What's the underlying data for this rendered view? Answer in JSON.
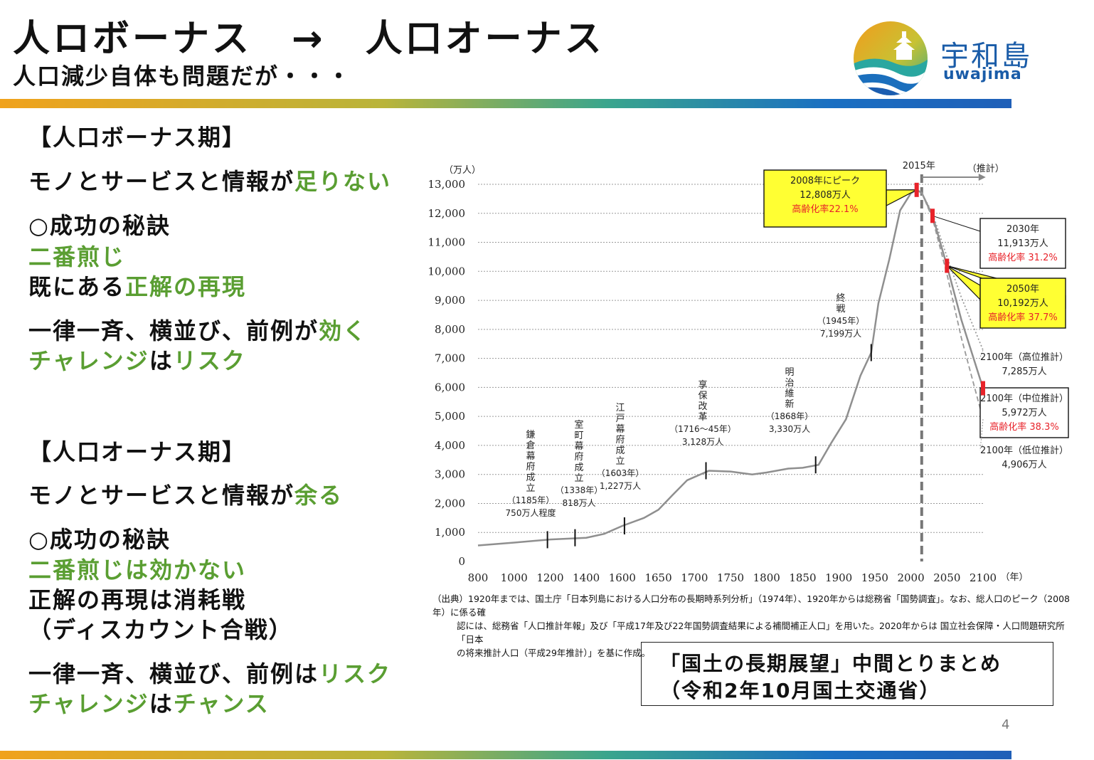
{
  "header": {
    "title": "人ロボーナス　→　人口オーナス",
    "subtitle": "人口減少自体も問題だが・・・",
    "logo_text": "宇和島",
    "logo_sub": "uwajima",
    "logo_icon": "uwajima-logo-icon"
  },
  "bonus": {
    "heading": "【人口ボーナス期】",
    "l1a": "モノとサービスと情報が",
    "l1b": "足りない",
    "l2": "○成功の秘訣",
    "l3": "二番煎じ",
    "l4a": "既にある",
    "l4b": "正解の再現",
    "l5a": "一律一斉、横並び、前例が",
    "l5b": "効く",
    "l6a": "チャレンジ",
    "l6b": "は",
    "l6c": "リスク"
  },
  "onus": {
    "heading": "【人口オーナス期】",
    "l1a": "モノとサービスと情報が",
    "l1b": "余る",
    "l2": "○成功の秘訣",
    "l3": "二番煎じは効かない",
    "l4": "正解の再現は消耗戦",
    "l5": "（ディスカウント合戦）",
    "l6a": "一律一斉、横並び、前例は",
    "l6b": "リスク",
    "l7a": "チャレンジ",
    "l7b": "は",
    "l7c": "チャンス"
  },
  "chart_data": {
    "type": "line",
    "ylabel": "（万人）",
    "xlabel": "（年）",
    "ylim": [
      0,
      13000
    ],
    "xlim": [
      800,
      2100
    ],
    "grid": true,
    "y_ticks": [
      "0",
      "1,000",
      "2,000",
      "3,000",
      "4,000",
      "5,000",
      "6,000",
      "7,000",
      "8,000",
      "9,000",
      "10,000",
      "11,000",
      "12,000",
      "13,000"
    ],
    "x_ticks": [
      "800",
      "1000",
      "1200",
      "1400",
      "1600",
      "1650",
      "1700",
      "1750",
      "1800",
      "1850",
      "1900",
      "1950",
      "2000",
      "2050",
      "2100"
    ],
    "colors": {
      "line": "#8f8f8f",
      "callout_fill": "#ffff33",
      "accent_red": "#e8232a"
    },
    "series": [
      {
        "x": [
          800,
          1000,
          1200,
          1400,
          1500,
          1600,
          1630,
          1650,
          1670,
          1690,
          1720,
          1750,
          1780,
          1800,
          1830,
          1850,
          1872,
          1890,
          1910,
          1930,
          1945,
          1955,
          1970,
          1985,
          2000,
          2008,
          2015,
          2030,
          2050,
          2070,
          2100
        ],
        "y": [
          551,
          650,
          757,
          818,
          952,
          1227,
          1500,
          1781,
          2300,
          2800,
          3128,
          3100,
          3000,
          3065,
          3200,
          3228,
          3330,
          4100,
          4900,
          6400,
          7199,
          8900,
          10400,
          12100,
          12693,
          12808,
          12709,
          11913,
          10192,
          8323,
          5972
        ]
      },
      {
        "name": "2100年（高位推計）",
        "x": [
          2015,
          2030,
          2050,
          2070,
          2100
        ],
        "y": [
          12709,
          12000,
          10500,
          9100,
          7285
        ]
      },
      {
        "name": "2100年（低位推計）",
        "x": [
          2015,
          2030,
          2050,
          2070,
          2100
        ],
        "y": [
          12709,
          11820,
          9900,
          7700,
          4906
        ]
      }
    ],
    "projection_label": "2015年",
    "projection_note": "（推計）",
    "projection_year": 2015,
    "events": [
      {
        "year": 1185,
        "value": 750,
        "lines": [
          "鎌",
          "倉",
          "幕",
          "府",
          "成",
          "立"
        ],
        "year_label": "（1185年）",
        "pop_label": "750万人程度"
      },
      {
        "year": 1338,
        "value": 818,
        "lines": [
          "室",
          "町",
          "幕",
          "府",
          "成",
          "立"
        ],
        "year_label": "（1338年）",
        "pop_label": "818万人"
      },
      {
        "year": 1603,
        "value": 1227,
        "lines": [
          "江",
          "戸",
          "幕",
          "府",
          "成",
          "立"
        ],
        "year_label": "（1603年）",
        "pop_label": "1,227万人"
      },
      {
        "year": 1716,
        "value": 3128,
        "lines": [
          "享",
          "保",
          "改",
          "革"
        ],
        "year_label": "（1716～45年）",
        "pop_label": "3,128万人"
      },
      {
        "year": 1868,
        "value": 3330,
        "lines": [
          "明",
          "治",
          "維",
          "新"
        ],
        "year_label": "（1868年）",
        "pop_label": "3,330万人"
      },
      {
        "year": 1945,
        "value": 7199,
        "lines": [
          "終",
          "戦"
        ],
        "year_label": "（1945年）",
        "pop_label": "7,199万人"
      }
    ],
    "callouts": [
      {
        "year": 2008,
        "value": 12808,
        "lines": [
          "2008年にピーク",
          "12,808万人"
        ],
        "red": "高齢化率22.1%",
        "yellow": true
      },
      {
        "year": 2030,
        "value": 11913,
        "lines": [
          "2030年",
          "11,913万人"
        ],
        "red": "高齢化率 31.2%",
        "yellow": false
      },
      {
        "year": 2050,
        "value": 10192,
        "lines": [
          "2050年",
          "10,192万人"
        ],
        "red": "高齢化率 37.7%",
        "yellow": true
      },
      {
        "year": 2100,
        "value": 5972,
        "lines": [
          "2100年（中位推計）",
          "5,972万人"
        ],
        "red": "高齢化率 38.3%",
        "yellow": false
      }
    ],
    "end_labels": [
      {
        "year": 2100,
        "value": 7285,
        "lines": [
          "2100年（高位推計）",
          "7,285万人"
        ]
      },
      {
        "year": 2100,
        "value": 4906,
        "lines": [
          "2100年（低位推計）",
          "4,906万人"
        ]
      }
    ]
  },
  "source": {
    "line1": "（出典）1920年までは、国土庁「日本列島における人口分布の長期時系列分析」（1974年）、1920年からは総務省「国勢調査」。なお、総人口のピーク（2008年）に係る確",
    "line2": "認には、総務省「人口推計年報」及び「平成17年及び22年国勢調査結果による補間補正人口」を用いた。2020年からは 国立社会保障・人口問題研究所「日本",
    "line3": "の将来推計人口（平成29年推計）」を基に作成。"
  },
  "reference": {
    "line1": "「国土の長期展望」中間とりまとめ",
    "line2": "（令和2年10月国土交通省）"
  },
  "page_number": "4"
}
